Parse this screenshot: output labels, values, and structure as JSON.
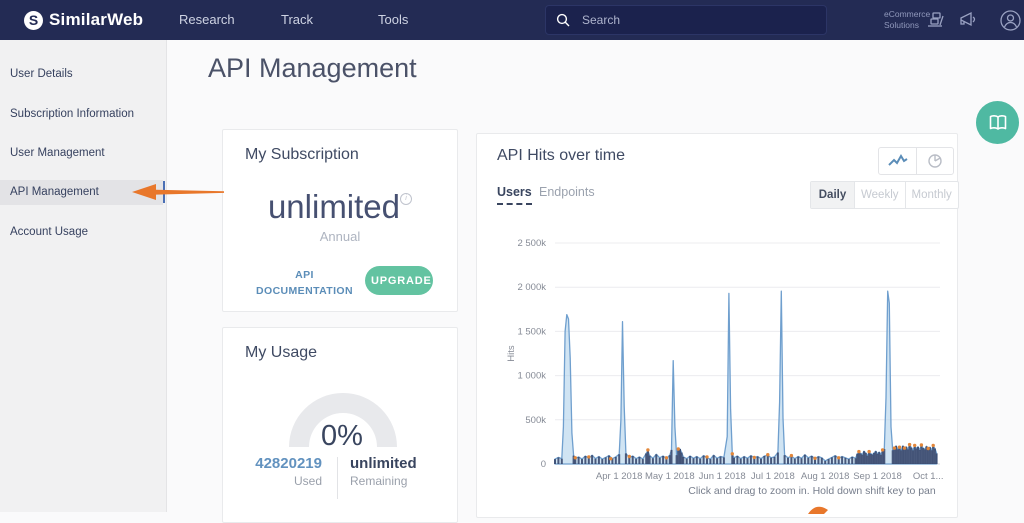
{
  "navbar": {
    "brand": "SimilarWeb",
    "brand_initial": "S",
    "menu": [
      {
        "label": "Research"
      },
      {
        "label": "Track"
      },
      {
        "label": "Tools"
      }
    ],
    "search_placeholder": "Search",
    "ecommerce_line1": "eCommerce",
    "ecommerce_line2": "Solutions"
  },
  "sidebar": {
    "items": [
      {
        "label": "User Details",
        "active": false
      },
      {
        "label": "Subscription Information",
        "active": false
      },
      {
        "label": "User Management",
        "active": false
      },
      {
        "label": "API Management",
        "active": true
      },
      {
        "label": "Account Usage",
        "active": false
      }
    ]
  },
  "page": {
    "title": "API Management"
  },
  "subscription_card": {
    "title": "My Subscription",
    "plan": "unlimited",
    "info_glyph": "i",
    "term": "Annual",
    "doc_link_line1": "API",
    "doc_link_line2": "DOCUMENTATION",
    "upgrade_label": "UPGRADE"
  },
  "usage_card": {
    "title": "My Usage",
    "percent": "0%",
    "used_value": "42820219",
    "used_label": "Used",
    "remaining_value": "unlimited",
    "remaining_label": "Remaining"
  },
  "chart_card": {
    "title": "API Hits over time",
    "tabs": [
      {
        "label": "Users",
        "active": true
      },
      {
        "label": "Endpoints",
        "active": false
      }
    ],
    "period_buttons": [
      {
        "label": "Daily",
        "active": true
      },
      {
        "label": "Weekly",
        "active": false
      },
      {
        "label": "Monthly",
        "active": false
      }
    ],
    "hint": "Click and drag to zoom in. Hold down shift key to pan"
  },
  "chart_data": {
    "type": "area",
    "title": "API Hits over time",
    "ylabel": "Hits",
    "unit": "thousands of hits per day",
    "ylim": [
      0,
      2500
    ],
    "ytick_values": [
      0,
      500,
      1000,
      1500,
      2000,
      2500
    ],
    "yticks": [
      "0",
      "500k",
      "1 000k",
      "1 500k",
      "2 000k",
      "2 500k"
    ],
    "xticks": [
      "Apr 1 2018",
      "May 1 2018",
      "Jun 1 2018",
      "Jul 1 2018",
      "Aug 1 2018",
      "Sep 1 2018",
      "Oct 1..."
    ],
    "xtick_days": [
      38,
      68,
      99,
      129,
      160,
      191,
      221
    ],
    "domain_days": [
      0,
      228
    ],
    "grid": true,
    "legend": false,
    "series": [
      {
        "name": "Users",
        "points": [
          [
            0,
            55
          ],
          [
            2,
            75
          ],
          [
            4,
            60
          ],
          [
            5,
            420
          ],
          [
            6,
            1500
          ],
          [
            7,
            1690
          ],
          [
            8,
            1640
          ],
          [
            9,
            1200
          ],
          [
            10,
            350
          ],
          [
            11,
            95
          ],
          [
            12,
            60
          ],
          [
            14,
            80
          ],
          [
            16,
            55
          ],
          [
            18,
            90
          ],
          [
            20,
            65
          ],
          [
            22,
            100
          ],
          [
            24,
            60
          ],
          [
            26,
            85
          ],
          [
            28,
            55
          ],
          [
            30,
            75
          ],
          [
            32,
            95
          ],
          [
            34,
            60
          ],
          [
            36,
            80
          ],
          [
            38,
            110
          ],
          [
            39,
            500
          ],
          [
            40,
            1610
          ],
          [
            41,
            650
          ],
          [
            42,
            120
          ],
          [
            44,
            70
          ],
          [
            46,
            90
          ],
          [
            48,
            60
          ],
          [
            50,
            80
          ],
          [
            52,
            55
          ],
          [
            54,
            120
          ],
          [
            55,
            150
          ],
          [
            56,
            95
          ],
          [
            58,
            65
          ],
          [
            60,
            110
          ],
          [
            62,
            70
          ],
          [
            64,
            90
          ],
          [
            66,
            60
          ],
          [
            68,
            100
          ],
          [
            69,
            160
          ],
          [
            70,
            1170
          ],
          [
            71,
            420
          ],
          [
            72,
            100
          ],
          [
            73,
            165
          ],
          [
            74,
            170
          ],
          [
            75,
            130
          ],
          [
            76,
            80
          ],
          [
            78,
            60
          ],
          [
            80,
            90
          ],
          [
            82,
            65
          ],
          [
            84,
            85
          ],
          [
            86,
            60
          ],
          [
            88,
            95
          ],
          [
            90,
            70
          ],
          [
            92,
            55
          ],
          [
            94,
            100
          ],
          [
            96,
            65
          ],
          [
            98,
            85
          ],
          [
            100,
            75
          ],
          [
            102,
            310
          ],
          [
            103,
            1930
          ],
          [
            104,
            620
          ],
          [
            105,
            110
          ],
          [
            106,
            70
          ],
          [
            108,
            90
          ],
          [
            110,
            60
          ],
          [
            112,
            85
          ],
          [
            114,
            65
          ],
          [
            116,
            95
          ],
          [
            118,
            70
          ],
          [
            120,
            85
          ],
          [
            122,
            60
          ],
          [
            124,
            90
          ],
          [
            126,
            100
          ],
          [
            128,
            70
          ],
          [
            130,
            80
          ],
          [
            132,
            130
          ],
          [
            133,
            700
          ],
          [
            134,
            1955
          ],
          [
            135,
            520
          ],
          [
            136,
            100
          ],
          [
            138,
            70
          ],
          [
            140,
            90
          ],
          [
            142,
            60
          ],
          [
            144,
            85
          ],
          [
            146,
            65
          ],
          [
            148,
            105
          ],
          [
            150,
            70
          ],
          [
            152,
            90
          ],
          [
            154,
            60
          ],
          [
            156,
            85
          ],
          [
            158,
            70
          ],
          [
            160,
            35
          ],
          [
            162,
            55
          ],
          [
            164,
            75
          ],
          [
            166,
            95
          ],
          [
            168,
            65
          ],
          [
            170,
            85
          ],
          [
            172,
            70
          ],
          [
            174,
            55
          ],
          [
            176,
            80
          ],
          [
            178,
            65
          ],
          [
            179,
            115
          ],
          [
            180,
            135
          ],
          [
            181,
            120
          ],
          [
            182,
            105
          ],
          [
            183,
            145
          ],
          [
            184,
            125
          ],
          [
            185,
            95
          ],
          [
            186,
            135
          ],
          [
            187,
            115
          ],
          [
            188,
            105
          ],
          [
            189,
            125
          ],
          [
            190,
            145
          ],
          [
            191,
            115
          ],
          [
            192,
            135
          ],
          [
            193,
            105
          ],
          [
            194,
            155
          ],
          [
            195,
            170
          ],
          [
            196,
            750
          ],
          [
            197,
            1955
          ],
          [
            198,
            1820
          ],
          [
            199,
            420
          ],
          [
            200,
            155
          ],
          [
            201,
            175
          ],
          [
            202,
            205
          ],
          [
            203,
            165
          ],
          [
            204,
            185
          ],
          [
            205,
            155
          ],
          [
            206,
            205
          ],
          [
            207,
            175
          ],
          [
            208,
            195
          ],
          [
            209,
            165
          ],
          [
            210,
            215
          ],
          [
            211,
            185
          ],
          [
            212,
            155
          ],
          [
            213,
            205
          ],
          [
            214,
            175
          ],
          [
            215,
            195
          ],
          [
            216,
            160
          ],
          [
            217,
            210
          ],
          [
            218,
            180
          ],
          [
            219,
            165
          ],
          [
            220,
            200
          ],
          [
            221,
            170
          ],
          [
            222,
            190
          ],
          [
            223,
            155
          ],
          [
            224,
            205
          ],
          [
            225,
            175
          ],
          [
            226,
            120
          ]
        ]
      }
    ],
    "orange_markers": [
      [
        12,
        70
      ],
      [
        20,
        80
      ],
      [
        33,
        60
      ],
      [
        44,
        85
      ],
      [
        55,
        160
      ],
      [
        66,
        70
      ],
      [
        73,
        170
      ],
      [
        90,
        80
      ],
      [
        105,
        115
      ],
      [
        118,
        75
      ],
      [
        126,
        105
      ],
      [
        140,
        95
      ],
      [
        154,
        65
      ],
      [
        168,
        70
      ],
      [
        180,
        140
      ],
      [
        186,
        140
      ],
      [
        194,
        160
      ],
      [
        201,
        180
      ],
      [
        204,
        190
      ],
      [
        207,
        180
      ],
      [
        210,
        220
      ],
      [
        213,
        210
      ],
      [
        217,
        215
      ],
      [
        221,
        175
      ],
      [
        224,
        210
      ]
    ],
    "colors": {
      "line": "#6f9fce",
      "fill": "rgba(170,205,234,0.55)",
      "bars": "#36456b",
      "markers": "#e2873b"
    }
  },
  "colors": {
    "navbar_bg": "#232b54",
    "accent_green": "#63c3a1",
    "accent_teal": "#4fb9a2",
    "accent_orange": "#e8772b",
    "link_blue": "#5b8db8",
    "sidebar_bg": "#f1f1f2"
  }
}
